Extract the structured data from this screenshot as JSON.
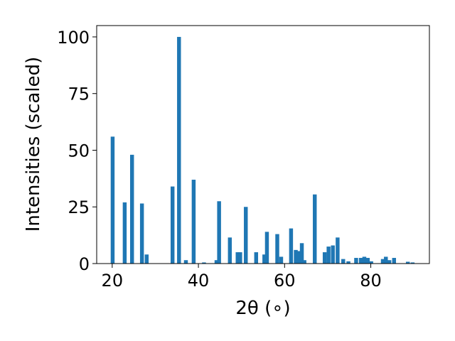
{
  "chart_data": {
    "type": "bar",
    "title": "",
    "xlabel": "2θ (∘)",
    "ylabel": "Intensities (scaled)",
    "xlim": [
      16.4,
      93.6
    ],
    "ylim": [
      0,
      105
    ],
    "xticks": [
      20,
      40,
      60,
      80
    ],
    "yticks": [
      0,
      25,
      50,
      75,
      100
    ],
    "bar_width": 0.9,
    "grid": false,
    "legend": "none",
    "bar_color": "#1f77b4",
    "x": [
      20.1,
      22.9,
      24.6,
      26.9,
      28.0,
      34.0,
      35.5,
      37.1,
      38.9,
      41.3,
      44.2,
      44.8,
      47.3,
      49.1,
      49.7,
      51.0,
      53.4,
      55.3,
      55.9,
      58.3,
      59.2,
      61.5,
      62.6,
      63.2,
      64.0,
      64.6,
      67.0,
      69.3,
      70.2,
      71.2,
      72.3,
      73.6,
      74.8,
      76.6,
      77.7,
      78.5,
      79.3,
      80.1,
      82.8,
      83.5,
      84.3,
      85.4,
      88.6,
      89.7
    ],
    "values": [
      56,
      27,
      48,
      26.5,
      4,
      34,
      100,
      1.5,
      37,
      0.5,
      1.5,
      27.5,
      11.5,
      5,
      5,
      25,
      5,
      4,
      14,
      13,
      3,
      15.5,
      6,
      5.5,
      9,
      1.5,
      30.5,
      5,
      7.5,
      8,
      11.5,
      2,
      1,
      2.5,
      2.5,
      3,
      2.5,
      1,
      2,
      3,
      1.5,
      2.5,
      0.8,
      0.5
    ]
  }
}
